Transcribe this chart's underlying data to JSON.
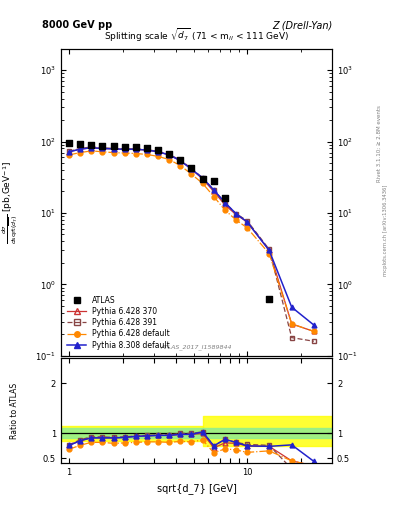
{
  "title_left": "8000 GeV pp",
  "title_right": "Z (Drell-Yan)",
  "watermark": "ATLAS_2017_I1589844",
  "x_data": [
    1.0,
    1.15,
    1.33,
    1.54,
    1.78,
    2.06,
    2.37,
    2.74,
    3.16,
    3.65,
    4.22,
    4.87,
    5.62,
    6.5,
    7.5,
    8.66,
    10.0,
    13.3,
    17.8,
    23.7
  ],
  "atlas_y": [
    95,
    92,
    90,
    88,
    87,
    85,
    83,
    80,
    75,
    68,
    55,
    42,
    30,
    28,
    16,
    null,
    null,
    0.62,
    null,
    null
  ],
  "py6_370_y": [
    72,
    78,
    82,
    80,
    79,
    78,
    78,
    76,
    72,
    65,
    54,
    41,
    30,
    20,
    13,
    9.5,
    7.5,
    3.0,
    0.28,
    0.22
  ],
  "py6_391_y": [
    73,
    80,
    84,
    82,
    80,
    79,
    79,
    77,
    73,
    66,
    55,
    42,
    31,
    21,
    14,
    9.8,
    7.8,
    3.1,
    0.18,
    0.16
  ],
  "py6_def_y": [
    65,
    70,
    74,
    72,
    70,
    69,
    68,
    66,
    62,
    56,
    46,
    35,
    26,
    17,
    11,
    8.0,
    6.2,
    2.7,
    0.28,
    0.22
  ],
  "py8_def_y": [
    72,
    78,
    82,
    80,
    79,
    78,
    78,
    76,
    72,
    65,
    54,
    41,
    31,
    21,
    14,
    9.8,
    7.5,
    3.0,
    0.48,
    0.27
  ],
  "ratio_py6_370": [
    0.76,
    0.85,
    0.91,
    0.91,
    0.91,
    0.92,
    0.94,
    0.95,
    0.96,
    0.96,
    0.98,
    0.98,
    1.0,
    0.71,
    0.81,
    0.8,
    0.75,
    0.74,
    0.45,
    0.35
  ],
  "ratio_py6_391": [
    0.77,
    0.87,
    0.93,
    0.93,
    0.92,
    0.93,
    0.95,
    0.96,
    0.97,
    0.97,
    1.0,
    1.0,
    1.03,
    0.75,
    0.88,
    0.82,
    0.78,
    0.76,
    0.29,
    0.26
  ],
  "ratio_py6_def": [
    0.68,
    0.76,
    0.82,
    0.82,
    0.8,
    0.81,
    0.82,
    0.83,
    0.83,
    0.82,
    0.84,
    0.83,
    0.87,
    0.61,
    0.69,
    0.67,
    0.62,
    0.65,
    0.45,
    0.35
  ],
  "ratio_py8_def": [
    0.76,
    0.85,
    0.91,
    0.91,
    0.91,
    0.92,
    0.94,
    0.95,
    0.96,
    0.96,
    0.98,
    0.98,
    1.03,
    0.75,
    0.88,
    0.82,
    0.75,
    0.74,
    0.77,
    0.44
  ],
  "color_py6_370": "#cc3333",
  "color_py6_391": "#884444",
  "color_py6_def": "#ff8800",
  "color_py8_def": "#2222cc",
  "ylim_main": [
    0.1,
    2000
  ],
  "ylim_ratio": [
    0.4,
    2.5
  ],
  "xlim": [
    0.9,
    30
  ]
}
